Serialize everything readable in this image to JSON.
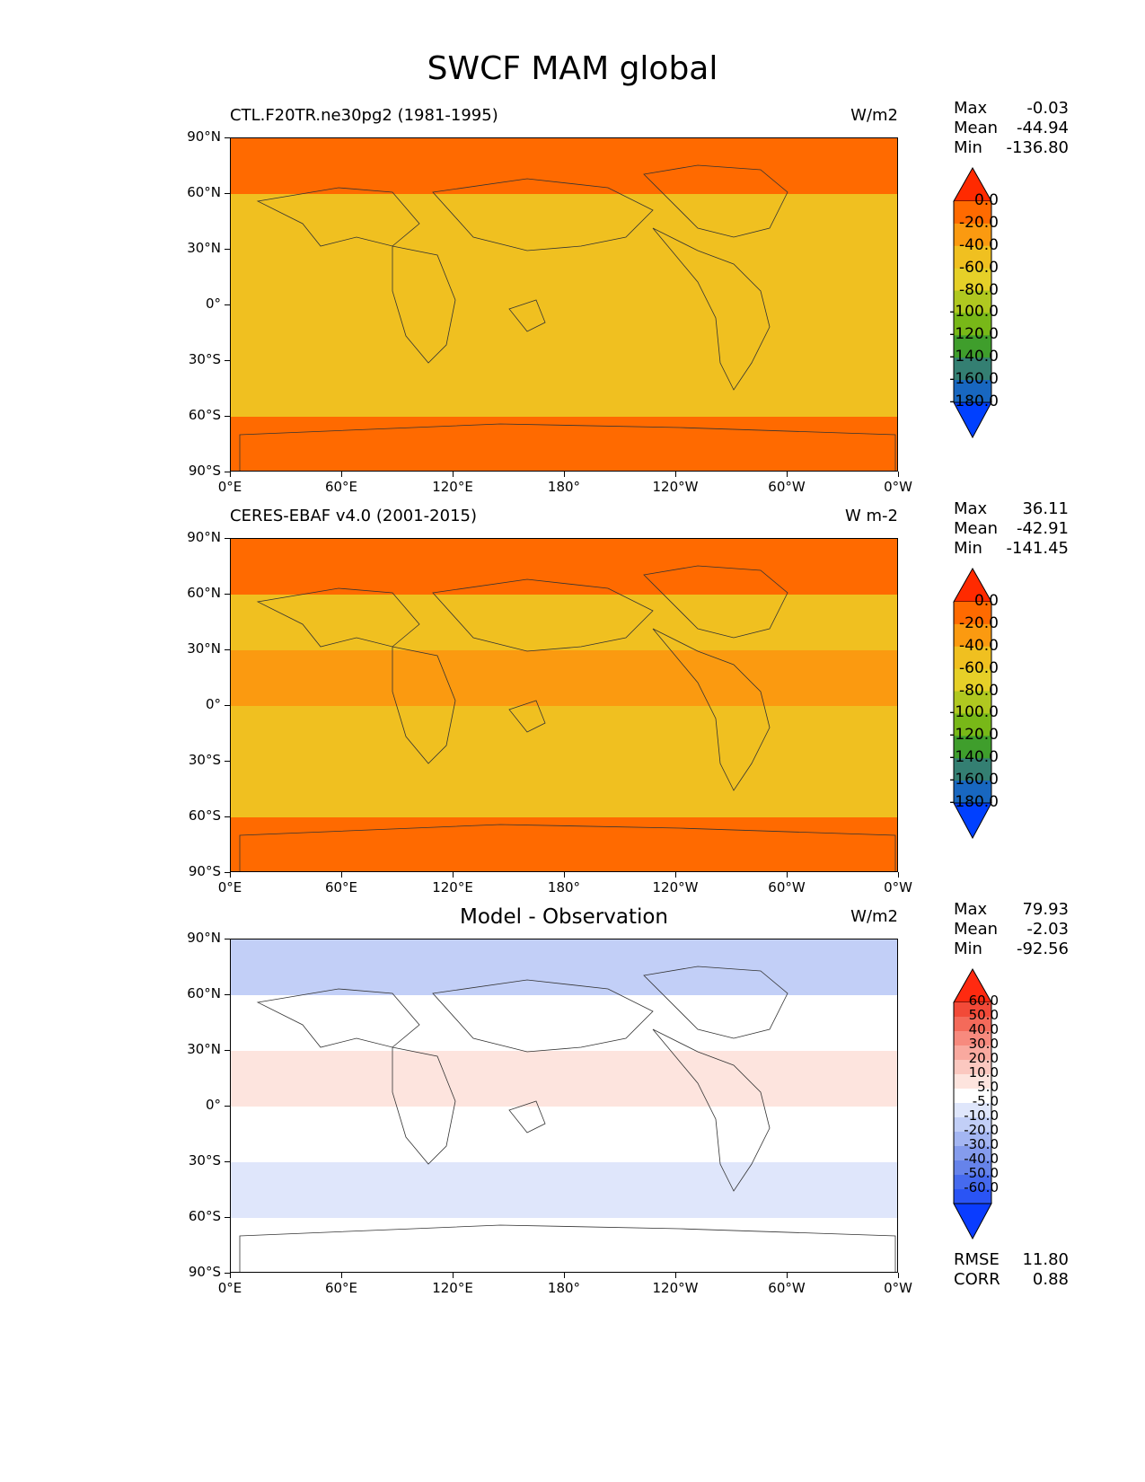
{
  "title": "SWCF MAM global",
  "chart_data": [
    {
      "type": "heatmap",
      "title": "CTL.F20TR.ne30pg2 (1981-1995)",
      "units": "W/m2",
      "stats": {
        "max": "-0.03",
        "mean": "-44.94",
        "min": "-136.80"
      },
      "x_ticks": [
        "0°E",
        "60°E",
        "120°E",
        "180°",
        "120°W",
        "60°W",
        "0°W"
      ],
      "y_ticks": [
        "90°N",
        "60°N",
        "30°N",
        "0°",
        "30°S",
        "60°S",
        "90°S"
      ],
      "xlim": [
        0,
        360
      ],
      "ylim": [
        -90,
        90
      ],
      "colorbar": {
        "labels": [
          "0.0",
          "-20.0",
          "-40.0",
          "-60.0",
          "-80.0",
          "-100.0",
          "-120.0",
          "-140.0",
          "-160.0",
          "-180.0"
        ],
        "colors": [
          "#ff2a00",
          "#ff6a00",
          "#fb9a10",
          "#f0c020",
          "#e6d028",
          "#b0c820",
          "#78b818",
          "#3f9e2c",
          "#347f72",
          "#1867c0",
          "#0040ff"
        ],
        "extend": "both"
      },
      "bands": [
        {
          "lat": [
            60,
            90
          ],
          "value": -15
        },
        {
          "lat": [
            30,
            60
          ],
          "value": -55
        },
        {
          "lat": [
            0,
            30
          ],
          "value": -42
        },
        {
          "lat": [
            -30,
            0
          ],
          "value": -45
        },
        {
          "lat": [
            -60,
            -30
          ],
          "value": -50
        },
        {
          "lat": [
            -90,
            -60
          ],
          "value": -20
        }
      ]
    },
    {
      "type": "heatmap",
      "title": "CERES-EBAF v4.0 (2001-2015)",
      "units": "W m-2",
      "stats": {
        "max": "36.11",
        "mean": "-42.91",
        "min": "-141.45"
      },
      "x_ticks": [
        "0°E",
        "60°E",
        "120°E",
        "180°",
        "120°W",
        "60°W",
        "0°W"
      ],
      "y_ticks": [
        "90°N",
        "60°N",
        "30°N",
        "0°",
        "30°S",
        "60°S",
        "90°S"
      ],
      "xlim": [
        0,
        360
      ],
      "ylim": [
        -90,
        90
      ],
      "colorbar": {
        "labels": [
          "0.0",
          "-20.0",
          "-40.0",
          "-60.0",
          "-80.0",
          "-100.0",
          "-120.0",
          "-140.0",
          "-160.0",
          "-180.0"
        ],
        "colors": [
          "#ff2a00",
          "#ff6a00",
          "#fb9a10",
          "#f0c020",
          "#e6d028",
          "#b0c820",
          "#78b818",
          "#3f9e2c",
          "#347f72",
          "#1867c0",
          "#0040ff"
        ],
        "extend": "both"
      },
      "bands": [
        {
          "lat": [
            60,
            90
          ],
          "value": -12
        },
        {
          "lat": [
            30,
            60
          ],
          "value": -58
        },
        {
          "lat": [
            0,
            30
          ],
          "value": -40
        },
        {
          "lat": [
            -30,
            0
          ],
          "value": -44
        },
        {
          "lat": [
            -60,
            -30
          ],
          "value": -52
        },
        {
          "lat": [
            -90,
            -60
          ],
          "value": -8
        }
      ]
    },
    {
      "type": "heatmap",
      "title": "Model - Observation",
      "units": "W/m2",
      "stats": {
        "max": "79.93",
        "mean": "-2.03",
        "min": "-92.56"
      },
      "x_ticks": [
        "0°E",
        "60°E",
        "120°E",
        "180°",
        "120°W",
        "60°W",
        "0°W"
      ],
      "y_ticks": [
        "90°N",
        "60°N",
        "30°N",
        "0°",
        "30°S",
        "60°S",
        "90°S"
      ],
      "xlim": [
        0,
        360
      ],
      "ylim": [
        -90,
        90
      ],
      "colorbar": {
        "labels": [
          "60.0",
          "50.0",
          "40.0",
          "30.0",
          "20.0",
          "10.0",
          "5.0",
          "-5.0",
          "-10.0",
          "-20.0",
          "-30.0",
          "-40.0",
          "-50.0",
          "-60.0"
        ],
        "colors": [
          "#ff2a10",
          "#f24a38",
          "#f46a5a",
          "#f78a7e",
          "#f9a99f",
          "#fbc8c0",
          "#fde4de",
          "#ffffff",
          "#dfe6fb",
          "#c2cff7",
          "#a4b6f2",
          "#859ced",
          "#6683ea",
          "#466aee",
          "#2a54f5",
          "#0a3cff"
        ],
        "extend": "both"
      },
      "bands": [
        {
          "lat": [
            60,
            90
          ],
          "value": -18
        },
        {
          "lat": [
            30,
            60
          ],
          "value": 4
        },
        {
          "lat": [
            0,
            30
          ],
          "value": 6
        },
        {
          "lat": [
            -30,
            0
          ],
          "value": 3
        },
        {
          "lat": [
            -60,
            -30
          ],
          "value": -8
        },
        {
          "lat": [
            -90,
            -60
          ],
          "value": 1
        }
      ],
      "rmse": "11.80",
      "corr": "0.88"
    }
  ],
  "stat_labels": {
    "max": "Max",
    "mean": "Mean",
    "min": "Min",
    "rmse": "RMSE",
    "corr": "CORR"
  }
}
